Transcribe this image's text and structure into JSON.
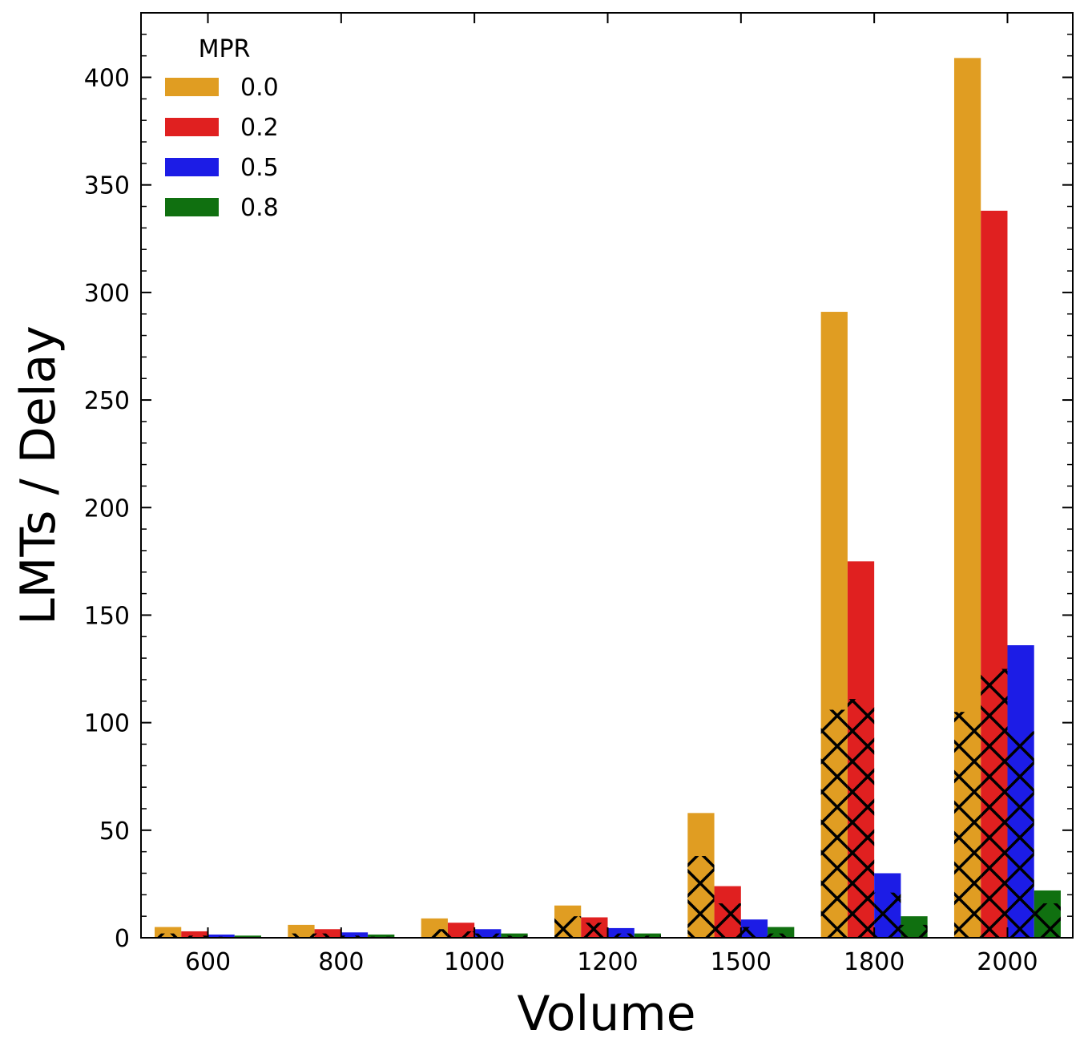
{
  "chart_data": {
    "type": "bar",
    "title": "",
    "xlabel": "Volume",
    "ylabel": "LMTs / Delay",
    "categories": [
      "600",
      "800",
      "1000",
      "1200",
      "1500",
      "1800",
      "2000"
    ],
    "ylim": [
      0,
      430
    ],
    "yticks": [
      0,
      50,
      100,
      150,
      200,
      250,
      300,
      350,
      400
    ],
    "ytick_labels": [
      "0",
      "50",
      "100",
      "150",
      "200",
      "250",
      "300",
      "350",
      "400"
    ],
    "legend": {
      "title": "MPR",
      "position": "top-left"
    },
    "hatch": {
      "pattern": "cross-hatch (x)",
      "description": "black cross-hatched lower segment inside each bar"
    },
    "series": [
      {
        "name": "0.0",
        "color": "#e09d22",
        "values": [
          5,
          6,
          9,
          15,
          58,
          291,
          409
        ],
        "hatched_values": [
          2,
          2,
          4,
          10,
          38,
          106,
          105
        ]
      },
      {
        "name": "0.2",
        "color": "#e02020",
        "values": [
          3,
          4,
          7,
          9.5,
          24,
          175,
          338
        ],
        "hatched_values": [
          1,
          2,
          3,
          7,
          16,
          111,
          125
        ]
      },
      {
        "name": "0.5",
        "color": "#1c1ce6",
        "values": [
          1.5,
          2.5,
          4,
          4.5,
          8.5,
          30,
          136
        ],
        "hatched_values": [
          0.5,
          1,
          2,
          2,
          5,
          21,
          96
        ]
      },
      {
        "name": "0.8",
        "color": "#107010",
        "values": [
          1,
          1.5,
          2,
          2,
          5,
          10,
          22
        ],
        "hatched_values": [
          0.3,
          0.5,
          1,
          1,
          2,
          6,
          16
        ]
      }
    ],
    "grid": false
  }
}
